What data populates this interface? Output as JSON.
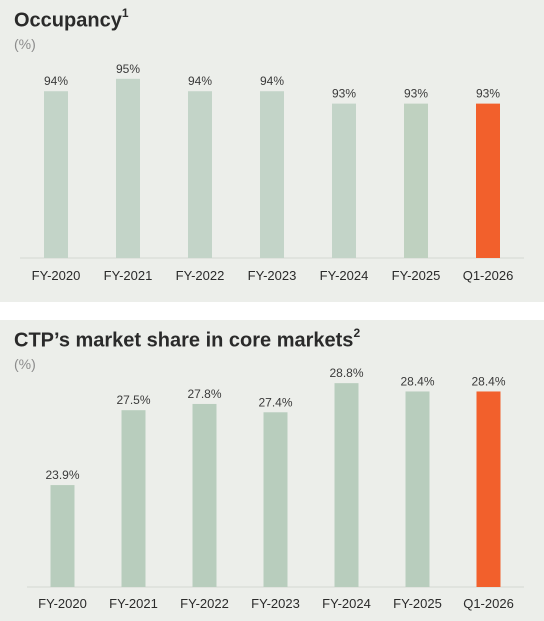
{
  "chart_data": [
    {
      "type": "bar",
      "title": "Occupancy",
      "title_sup": "1",
      "unit": "(%)",
      "categories": [
        "FY-2020",
        "FY-2021",
        "FY-2022",
        "FY-2023",
        "FY-2024",
        "FY-2025",
        "Q1-2026"
      ],
      "values": [
        94,
        95,
        94,
        94,
        93,
        93,
        93
      ],
      "value_labels": [
        "94%",
        "95%",
        "94%",
        "94%",
        "93%",
        "93%",
        "93%"
      ],
      "highlight_index": 6,
      "colors": {
        "bar": "#c3d4c8",
        "bar_alt": "#bfd1c0",
        "highlight": "#f2602c"
      }
    },
    {
      "type": "bar",
      "title": "CTP’s market share in core markets",
      "title_sup": "2",
      "unit": "(%)",
      "categories": [
        "FY-2020",
        "FY-2021",
        "FY-2022",
        "FY-2023",
        "FY-2024",
        "FY-2025",
        "Q1-2026"
      ],
      "values": [
        23.9,
        27.5,
        27.8,
        27.4,
        28.8,
        28.4,
        28.4
      ],
      "value_labels": [
        "23.9%",
        "27.5%",
        "27.8%",
        "27.4%",
        "28.8%",
        "28.4%",
        "28.4%"
      ],
      "highlight_index": 6,
      "colors": {
        "bar": "#b8cdbd",
        "highlight": "#f2602c"
      }
    }
  ]
}
